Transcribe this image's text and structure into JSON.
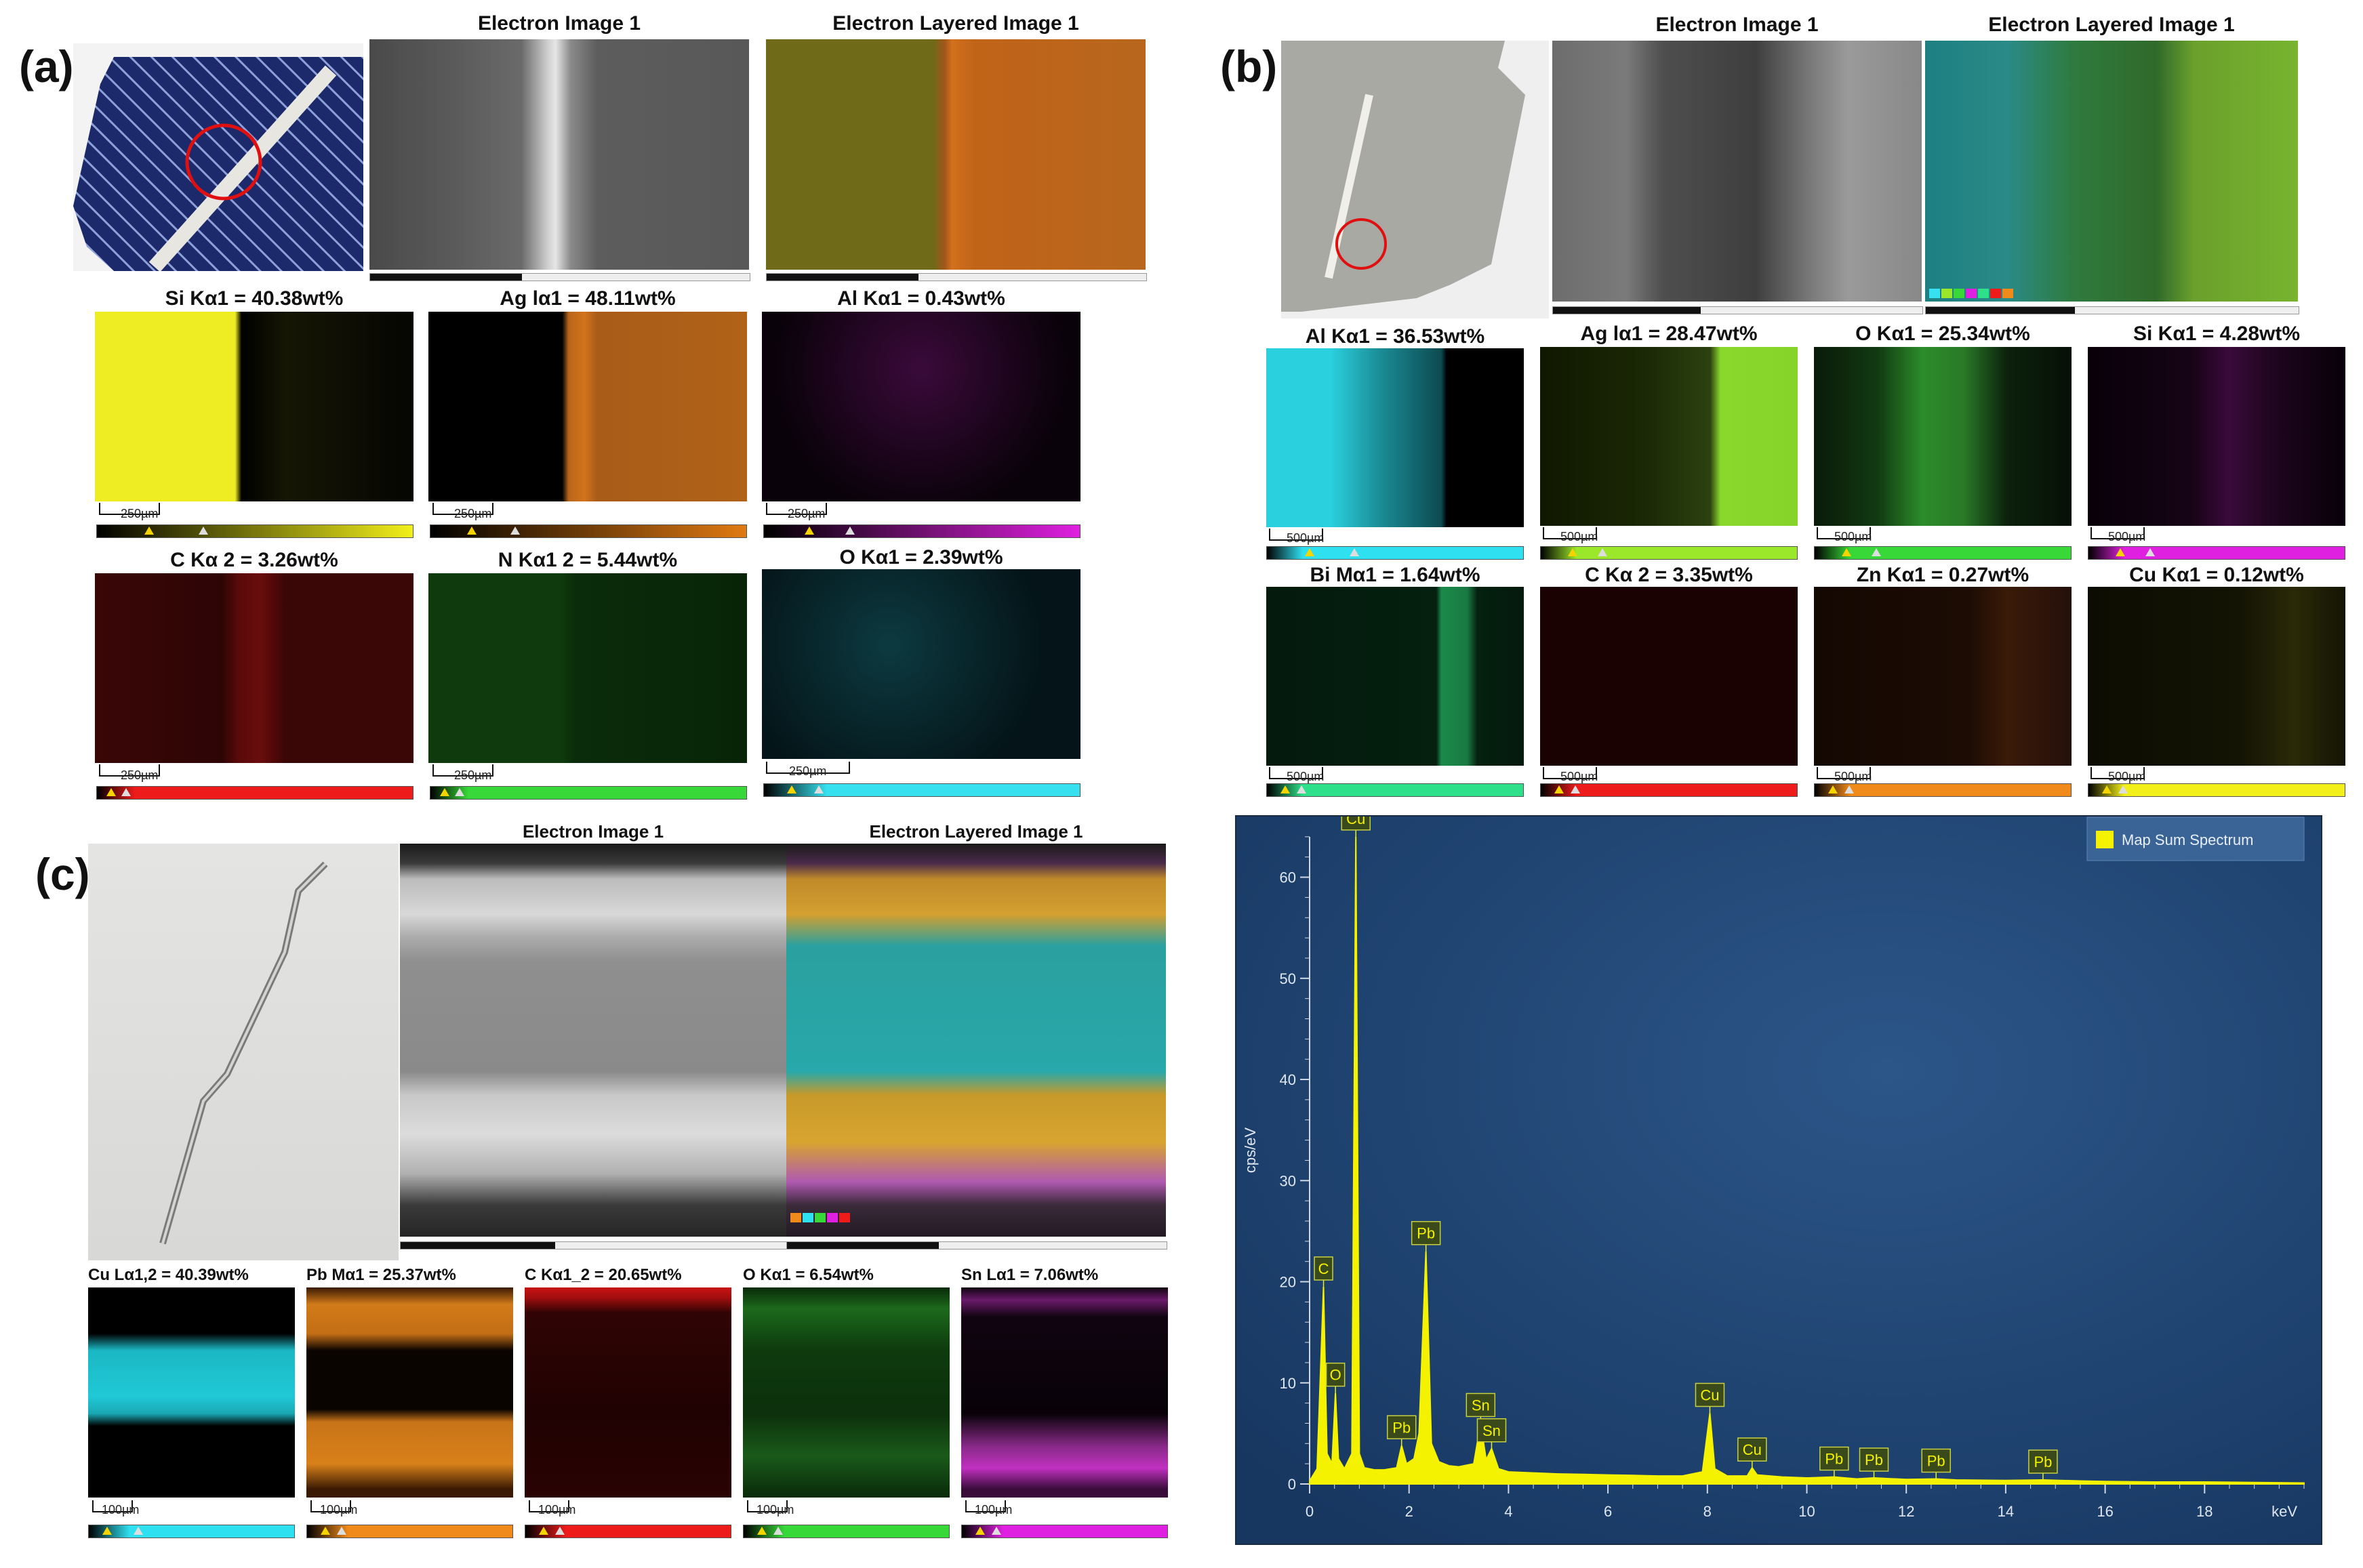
{
  "panels": {
    "a": {
      "letter": "(a)",
      "electron_title": "Electron Image 1",
      "layered_title": "Electron Layered Image 1",
      "maps": [
        {
          "label": "Si Kα1 = 40.38wt%",
          "scale": "250µm",
          "color": "#f2ef1a"
        },
        {
          "label": "Ag lα1 = 48.11wt%",
          "scale": "250µm",
          "color": "#e07a12"
        },
        {
          "label": "Al Kα1 = 0.43wt%",
          "scale": "250µm",
          "color": "#e020e0"
        },
        {
          "label": "C Kα 2 = 3.26wt%",
          "scale": "250µm",
          "color": "#ee1b1b"
        },
        {
          "label": "N Kα1 2 = 5.44wt%",
          "scale": "250µm",
          "color": "#38d838"
        },
        {
          "label": "O Kα1 = 2.39wt%",
          "scale": "250µm",
          "color": "#36e0ee"
        }
      ]
    },
    "b": {
      "letter": "(b)",
      "electron_title": "Electron Image 1",
      "layered_title": "Electron Layered Image 1",
      "maps": [
        {
          "label": "Al Kα1 = 36.53wt%",
          "scale": "500µm",
          "color": "#2fe0f0"
        },
        {
          "label": "Ag lα1 = 28.47wt%",
          "scale": "500µm",
          "color": "#9be82a"
        },
        {
          "label": "O Kα1 = 25.34wt%",
          "scale": "500µm",
          "color": "#38d838"
        },
        {
          "label": "Si Kα1 = 4.28wt%",
          "scale": "500µm",
          "color": "#e020e0"
        },
        {
          "label": "Bi Mα1 = 1.64wt%",
          "scale": "500µm",
          "color": "#2fe08a"
        },
        {
          "label": "C Kα 2 = 3.35wt%",
          "scale": "500µm",
          "color": "#ee1b1b"
        },
        {
          "label": "Zn Kα1 = 0.27wt%",
          "scale": "500µm",
          "color": "#f08a1a"
        },
        {
          "label": "Cu Kα1 = 0.12wt%",
          "scale": "500µm",
          "color": "#f2ef1a"
        }
      ]
    },
    "c": {
      "letter": "(c)",
      "electron_title": "Electron Image 1",
      "layered_title": "Electron Layered Image 1",
      "maps": [
        {
          "label": "Cu Lα1,2 = 40.39wt%",
          "scale": "100µm",
          "color": "#2fe0f0"
        },
        {
          "label": "Pb Mα1 = 25.37wt%",
          "scale": "100µm",
          "color": "#f08a1a"
        },
        {
          "label": "C Kα1_2 = 20.65wt%",
          "scale": "100µm",
          "color": "#ee1b1b"
        },
        {
          "label": "O Kα1 = 6.54wt%",
          "scale": "100µm",
          "color": "#38d838"
        },
        {
          "label": "Sn Lα1 = 7.06wt%",
          "scale": "100µm",
          "color": "#e020e0"
        }
      ]
    }
  },
  "chart_data": {
    "type": "line",
    "title": "",
    "xlabel": "keV",
    "ylabel": "cps/eV",
    "xlim": [
      0,
      20
    ],
    "ylim": [
      0,
      66
    ],
    "x_ticks": [
      "0",
      "2",
      "4",
      "6",
      "8",
      "10",
      "12",
      "14",
      "16",
      "18"
    ],
    "y_ticks": [
      "0",
      "10",
      "20",
      "30",
      "40",
      "50",
      "60"
    ],
    "legend": {
      "label": "Map Sum Spectrum",
      "position": "top-right",
      "color": "#f5f200"
    },
    "background": "#1e3f6b",
    "series": [
      {
        "name": "Map Sum Spectrum",
        "points": [
          [
            0.0,
            0.3
          ],
          [
            0.15,
            1.5
          ],
          [
            0.28,
            19.5
          ],
          [
            0.35,
            3
          ],
          [
            0.45,
            2
          ],
          [
            0.52,
            9
          ],
          [
            0.58,
            2.5
          ],
          [
            0.7,
            1.5
          ],
          [
            0.85,
            3
          ],
          [
            0.93,
            64
          ],
          [
            1.0,
            3
          ],
          [
            1.1,
            1.6
          ],
          [
            1.3,
            1.4
          ],
          [
            1.5,
            1.4
          ],
          [
            1.75,
            1.6
          ],
          [
            1.85,
            3.8
          ],
          [
            1.95,
            2
          ],
          [
            2.1,
            2.5
          ],
          [
            2.2,
            5
          ],
          [
            2.34,
            23
          ],
          [
            2.45,
            4
          ],
          [
            2.6,
            2.2
          ],
          [
            2.8,
            1.8
          ],
          [
            3.0,
            1.7
          ],
          [
            3.3,
            2
          ],
          [
            3.44,
            6
          ],
          [
            3.55,
            2.4
          ],
          [
            3.66,
            3.5
          ],
          [
            3.8,
            1.5
          ],
          [
            4.0,
            1.2
          ],
          [
            4.5,
            1.1
          ],
          [
            5.0,
            1
          ],
          [
            5.5,
            0.95
          ],
          [
            6.0,
            0.9
          ],
          [
            6.5,
            0.85
          ],
          [
            7.0,
            0.8
          ],
          [
            7.5,
            0.8
          ],
          [
            7.9,
            1.2
          ],
          [
            8.05,
            7
          ],
          [
            8.15,
            1.5
          ],
          [
            8.4,
            0.8
          ],
          [
            8.8,
            0.8
          ],
          [
            8.9,
            1.6
          ],
          [
            9.0,
            0.9
          ],
          [
            9.5,
            0.7
          ],
          [
            10.0,
            0.6
          ],
          [
            10.55,
            0.7
          ],
          [
            11.0,
            0.5
          ],
          [
            11.35,
            0.6
          ],
          [
            12.0,
            0.45
          ],
          [
            12.6,
            0.5
          ],
          [
            13.0,
            0.4
          ],
          [
            14.0,
            0.35
          ],
          [
            14.75,
            0.4
          ],
          [
            15.5,
            0.3
          ],
          [
            16.0,
            0.25
          ],
          [
            17.0,
            0.2
          ],
          [
            18.0,
            0.2
          ],
          [
            19.0,
            0.15
          ],
          [
            20.0,
            0.1
          ]
        ]
      }
    ],
    "annotations": [
      {
        "label": "C",
        "x": 0.28,
        "y": 19.5
      },
      {
        "label": "O",
        "x": 0.52,
        "y": 9
      },
      {
        "label": "Cu",
        "x": 0.93,
        "y": 64
      },
      {
        "label": "Pb",
        "x": 1.85,
        "y": 3.8
      },
      {
        "label": "Pb",
        "x": 2.34,
        "y": 23
      },
      {
        "label": "Sn",
        "x": 3.44,
        "y": 6
      },
      {
        "label": "Sn",
        "x": 3.66,
        "y": 3.5
      },
      {
        "label": "Cu",
        "x": 8.05,
        "y": 7
      },
      {
        "label": "Cu",
        "x": 8.9,
        "y": 1.6
      },
      {
        "label": "Pb",
        "x": 10.55,
        "y": 0.7
      },
      {
        "label": "Pb",
        "x": 11.35,
        "y": 0.6
      },
      {
        "label": "Pb",
        "x": 12.6,
        "y": 0.5
      },
      {
        "label": "Pb",
        "x": 14.75,
        "y": 0.4
      }
    ]
  }
}
